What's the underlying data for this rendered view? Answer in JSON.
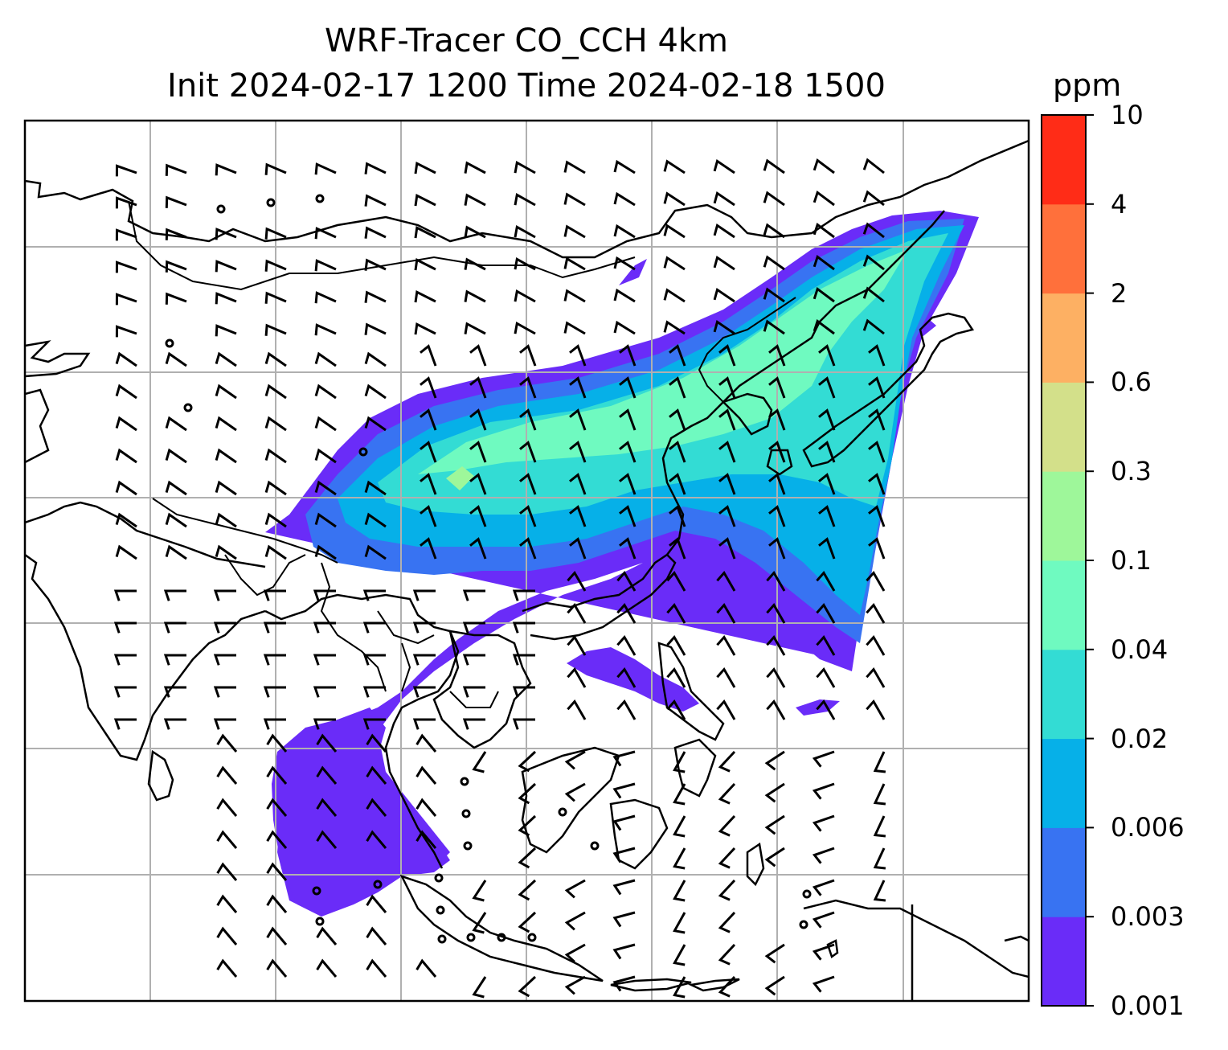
{
  "chart_data": {
    "type": "heatmap",
    "title": "WRF-Tracer CO_CCH 4km",
    "subtitle": "Init 2024-02-17 1200 Time 2024-02-18 1500",
    "colorbar": {
      "label": "ppm",
      "levels": [
        "0.001",
        "0.003",
        "0.006",
        "0.02",
        "0.04",
        "0.1",
        "0.3",
        "0.6",
        "2",
        "4",
        "10"
      ],
      "colors": [
        "#6a2cf8",
        "#3873f2",
        "#06b0e8",
        "#33dcd4",
        "#6ffac0",
        "#9ef79a",
        "#d3e08a",
        "#fdb063",
        "#ff703b",
        "#ff2c17"
      ]
    },
    "grid": true,
    "overlays": [
      "coastlines",
      "country-borders",
      "wind-barbs"
    ]
  }
}
